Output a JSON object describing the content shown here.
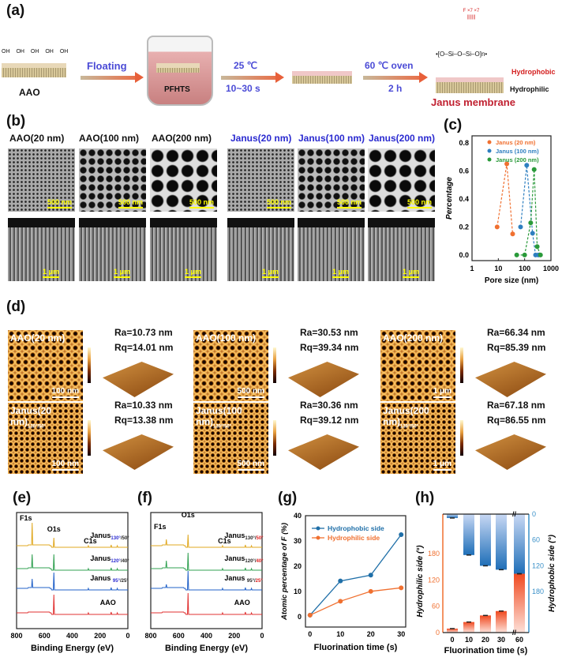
{
  "panel_labels": {
    "a": "(a)",
    "b": "(b)",
    "c": "(c)",
    "d": "(d)",
    "e": "(e)",
    "f": "(f)",
    "g": "(g)",
    "h": "(h)"
  },
  "scheme": {
    "oh_groups": [
      "OH",
      "OH",
      "OH",
      "OH",
      "OH"
    ],
    "aao_label": "AAO",
    "step1": "Floating",
    "dish_label": "PFHTS",
    "step2_top": "25 ℃",
    "step2_bottom": "10~30 s",
    "step3_top": "60 ℃ oven",
    "step3_bottom": "2 h",
    "hydrophobic": "Hydrophobic",
    "hydrophilic": "Hydrophilic",
    "product": "Janus membrane",
    "structure_backbone": "•[O–Si–O–Si–O]n•",
    "structure_F": "F"
  },
  "sem": {
    "columns": [
      {
        "title": "AAO(20 nm)",
        "top_scale": "500 nm",
        "side_scale": "1 μm"
      },
      {
        "title": "AAO(100 nm)",
        "top_scale": "500 nm",
        "side_scale": "1 μm"
      },
      {
        "title": "AAO(200 nm)",
        "top_scale": "500 nm",
        "side_scale": "1 μm"
      },
      {
        "title": "Janus(20 nm)",
        "top_scale": "500 nm",
        "side_scale": "1 μm"
      },
      {
        "title": "Janus(100 nm)",
        "top_scale": "500 nm",
        "side_scale": "1 μm"
      },
      {
        "title": "Janus(200 nm)",
        "top_scale": "500 nm",
        "side_scale": "1 μm"
      }
    ]
  },
  "afm": [
    {
      "title": "AAO(20 nm)",
      "sub": "",
      "scale": "100 nm",
      "ra": "Ra=10.73 nm",
      "rq": "Rq=14.01 nm"
    },
    {
      "title": "AAO(100 nm)",
      "sub": "",
      "scale": "500 nm",
      "ra": "Ra=30.53 nm",
      "rq": "Rq=39.34 nm"
    },
    {
      "title": "AAO(200 nm)",
      "sub": "",
      "scale": "1 μm",
      "ra": "Ra=66.34 nm",
      "rq": "Rq=85.39 nm"
    },
    {
      "title": "Janus(20 nm)",
      "sub": "130°/50°",
      "scale": "100 nm",
      "ra": "Ra=10.33 nm",
      "rq": "Rq=13.38 nm"
    },
    {
      "title": "Janus(100 nm)",
      "sub": "130°/50°",
      "scale": "500 nm",
      "ra": "Ra=30.36 nm",
      "rq": "Rq=39.12 nm"
    },
    {
      "title": "Janus(200 nm)",
      "sub": "130°/50°",
      "scale": "1 μm",
      "ra": "Ra=67.18 nm",
      "rq": "Rq=86.55 nm"
    }
  ],
  "chart_data": [
    {
      "id": "c",
      "type": "scatter",
      "xscale": "log",
      "xlabel": "Pore size (nm)",
      "ylabel": "Percentage",
      "xlim": [
        1,
        1000
      ],
      "ylim": [
        -0.04,
        0.85
      ],
      "xticks": [
        "1",
        "10",
        "100",
        "1000"
      ],
      "yticks": [
        "0.0",
        "0.2",
        "0.4",
        "0.6",
        "0.8"
      ],
      "legend": "top-right",
      "series": [
        {
          "name": "Janus (20 nm)",
          "color": "#f07030",
          "points": [
            [
              9,
              0.2
            ],
            [
              21,
              0.65
            ],
            [
              35,
              0.15
            ]
          ]
        },
        {
          "name": "Janus (100 nm)",
          "color": "#2e7fc0",
          "points": [
            [
              70,
              0.2
            ],
            [
              120,
              0.64
            ],
            [
              200,
              0.155
            ],
            [
              260,
              0
            ],
            [
              330,
              0
            ]
          ]
        },
        {
          "name": "Janus (200 nm)",
          "color": "#2a9a3a",
          "points": [
            [
              50,
              0
            ],
            [
              100,
              0
            ],
            [
              170,
              0.23
            ],
            [
              230,
              0.61
            ],
            [
              300,
              0.06
            ],
            [
              400,
              0
            ]
          ]
        }
      ]
    },
    {
      "id": "e",
      "type": "line",
      "xlabel": "Binding Energy (eV)",
      "xlim": [
        800,
        0
      ],
      "xticks": [
        "800",
        "600",
        "400",
        "200",
        "0"
      ],
      "peaks": {
        "F1s": "F1s",
        "O1s": "O1s",
        "C1s": "C1s"
      },
      "series": [
        {
          "name": "Janus",
          "sub_a": "130°",
          "sub_b": "/50°",
          "color": "#e0a820",
          "F": 28,
          "O": 12
        },
        {
          "name": "Janus",
          "sub_a": "120°",
          "sub_b": "/40°",
          "color": "#30a050",
          "F": 17,
          "O": 20
        },
        {
          "name": "Janus ",
          "sub_a": "95°",
          "sub_b": "/25°",
          "color": "#2060c8",
          "F": 11,
          "O": 22
        },
        {
          "name": "AAO",
          "sub_a": "",
          "sub_b": "",
          "color": "#e03030",
          "F": 0,
          "O": 25
        }
      ]
    },
    {
      "id": "f",
      "type": "line",
      "xlabel": "Binding Energy (eV)",
      "xlim": [
        800,
        0
      ],
      "xticks": [
        "800",
        "600",
        "400",
        "200",
        "0"
      ],
      "peaks": {
        "F1s": "F1s",
        "O1s": "O1s",
        "C1s": "C1s"
      },
      "series": [
        {
          "name": "Janus",
          "sub_a": "130°/",
          "sub_b": "50°",
          "color": "#e0a820",
          "F": 7,
          "O": 16
        },
        {
          "name": "Janus",
          "sub_a": "120°/",
          "sub_b": "40°",
          "color": "#30a050",
          "F": 9,
          "O": 22
        },
        {
          "name": "Janus ",
          "sub_a": "95°/",
          "sub_b": "25°",
          "color": "#2060c8",
          "F": 4,
          "O": 24
        },
        {
          "name": "AAO",
          "sub_a": "",
          "sub_b": "",
          "color": "#e03030",
          "F": 0,
          "O": 27
        }
      ]
    },
    {
      "id": "g",
      "type": "line",
      "xlabel": "Fluorination time (s)",
      "ylabel": "Atomic percentage of F (%)",
      "x": [
        0,
        10,
        20,
        30
      ],
      "xlim": [
        -1.5,
        31.5
      ],
      "ylim": [
        -4,
        40
      ],
      "xticks": [
        "0",
        "10",
        "20",
        "30"
      ],
      "yticks": [
        "0",
        "10",
        "20",
        "30",
        "40"
      ],
      "legend": "top-left",
      "series": [
        {
          "name": "Hydrophobic side",
          "color": "#1f6fa8",
          "values": [
            0.7,
            14.2,
            16.5,
            32.5
          ]
        },
        {
          "name": "Hydrophilic side",
          "color": "#f07030",
          "values": [
            0.7,
            6.2,
            10.1,
            11.5
          ]
        }
      ]
    },
    {
      "id": "h",
      "type": "bar",
      "xlabel": "Fluorination time (s)",
      "ylabel_left": "Hydrophilic side (°)",
      "ylabel_right": "Hydrophobic side (°)",
      "categories": [
        "0",
        "10",
        "20",
        "30",
        "60"
      ],
      "ylim_left": [
        0,
        270
      ],
      "ylim_right": [
        0,
        165
      ],
      "yticks_left": [
        "0",
        "60",
        "120",
        "180"
      ],
      "yticks_right": [
        "0",
        "60",
        "120",
        "180"
      ],
      "series": [
        {
          "name": "Hydrophilic side",
          "color": "#f05a30",
          "values": [
            9,
            24,
            39,
            49,
            134
          ]
        },
        {
          "name": "Hydrophobic side",
          "color": "#1f6fb8",
          "values": [
            9,
            95,
            120,
            129,
            137
          ]
        }
      ]
    }
  ]
}
